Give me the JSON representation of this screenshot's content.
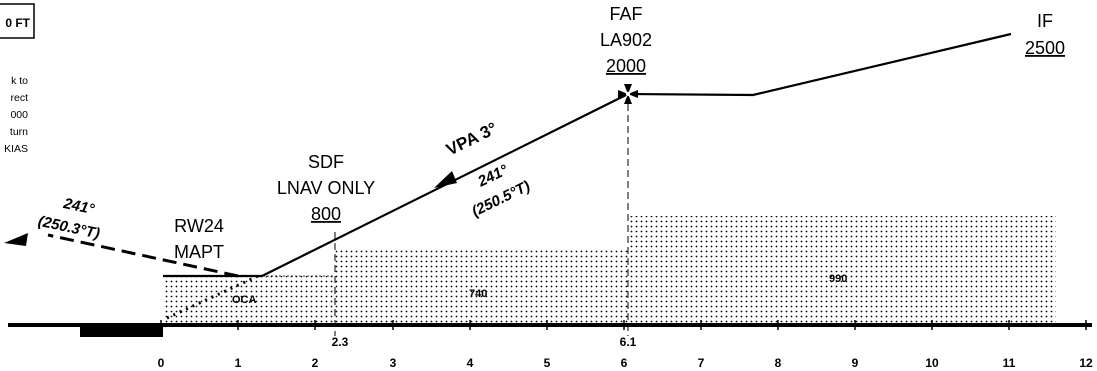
{
  "header_box": {
    "text": "0 FT"
  },
  "missed_approach_note": [
    "k  to",
    "rect",
    "000",
    "turn",
    "KIAS"
  ],
  "fixes": {
    "if": {
      "name": "IF",
      "altitude": "2500"
    },
    "faf": {
      "name": "FAF",
      "id": "LA902",
      "altitude": "2000"
    },
    "sdf": {
      "name": "SDF",
      "qualifier": "LNAV ONLY",
      "altitude": "800"
    },
    "mapt": {
      "runway": "RW24",
      "name": "MAPT"
    }
  },
  "labels": {
    "vpa": "VPA 3°",
    "final_course_mag": "241°",
    "final_course_true": "(250.5°T)",
    "missed_course_mag": "241°",
    "missed_course_true": "(250.3°T)",
    "oca": "OCA",
    "obstacle_740": "740",
    "obstacle_990": "990",
    "dist_sdf": "2.3",
    "dist_faf": "6.1"
  },
  "axis": {
    "ticks": [
      "0",
      "1",
      "2",
      "3",
      "4",
      "5",
      "6",
      "7",
      "8",
      "9",
      "10",
      "11",
      "12"
    ]
  }
}
